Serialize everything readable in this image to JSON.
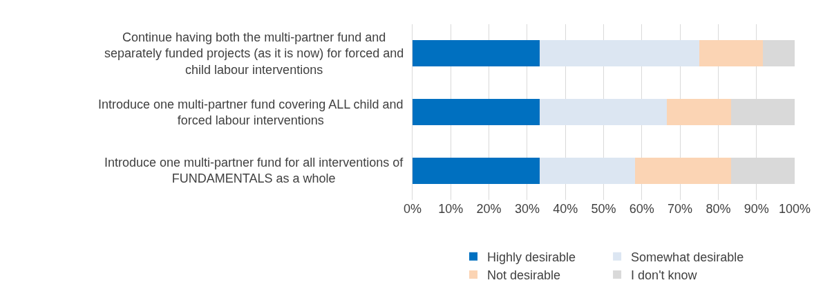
{
  "chart_data": {
    "type": "bar",
    "orientation": "horizontal",
    "stacked": true,
    "categories": [
      "Continue having both the multi-partner fund and\nseparately funded projects (as it is now) for forced and\nchild labour interventions",
      "Introduce one multi-partner fund covering ALL child and\nforced labour interventions",
      "Introduce one multi-partner fund for all interventions of\nFUNDAMENTALS as a whole"
    ],
    "series": [
      {
        "name": "Highly desirable",
        "color": "#0070c0",
        "values": [
          33.3,
          33.3,
          33.3
        ]
      },
      {
        "name": "Somewhat desirable",
        "color": "#dce6f2",
        "values": [
          41.7,
          33.3,
          25
        ]
      },
      {
        "name": "Not desirable",
        "color": "#fbd4b4",
        "values": [
          16.7,
          16.7,
          25
        ]
      },
      {
        "name": "I don't know",
        "color": "#d9d9d9",
        "values": [
          8.3,
          16.7,
          16.7
        ]
      }
    ],
    "xlim": [
      0,
      100
    ],
    "xticks": [
      {
        "value": 0,
        "label": "0%"
      },
      {
        "value": 10,
        "label": "10%"
      },
      {
        "value": 20,
        "label": "20%"
      },
      {
        "value": 30,
        "label": "30%"
      },
      {
        "value": 40,
        "label": "40%"
      },
      {
        "value": 50,
        "label": "50%"
      },
      {
        "value": 60,
        "label": "60%"
      },
      {
        "value": 70,
        "label": "70%"
      },
      {
        "value": 80,
        "label": "80%"
      },
      {
        "value": 90,
        "label": "90%"
      },
      {
        "value": 100,
        "label": "100%"
      }
    ],
    "grid": "x",
    "legend": "bottom"
  }
}
